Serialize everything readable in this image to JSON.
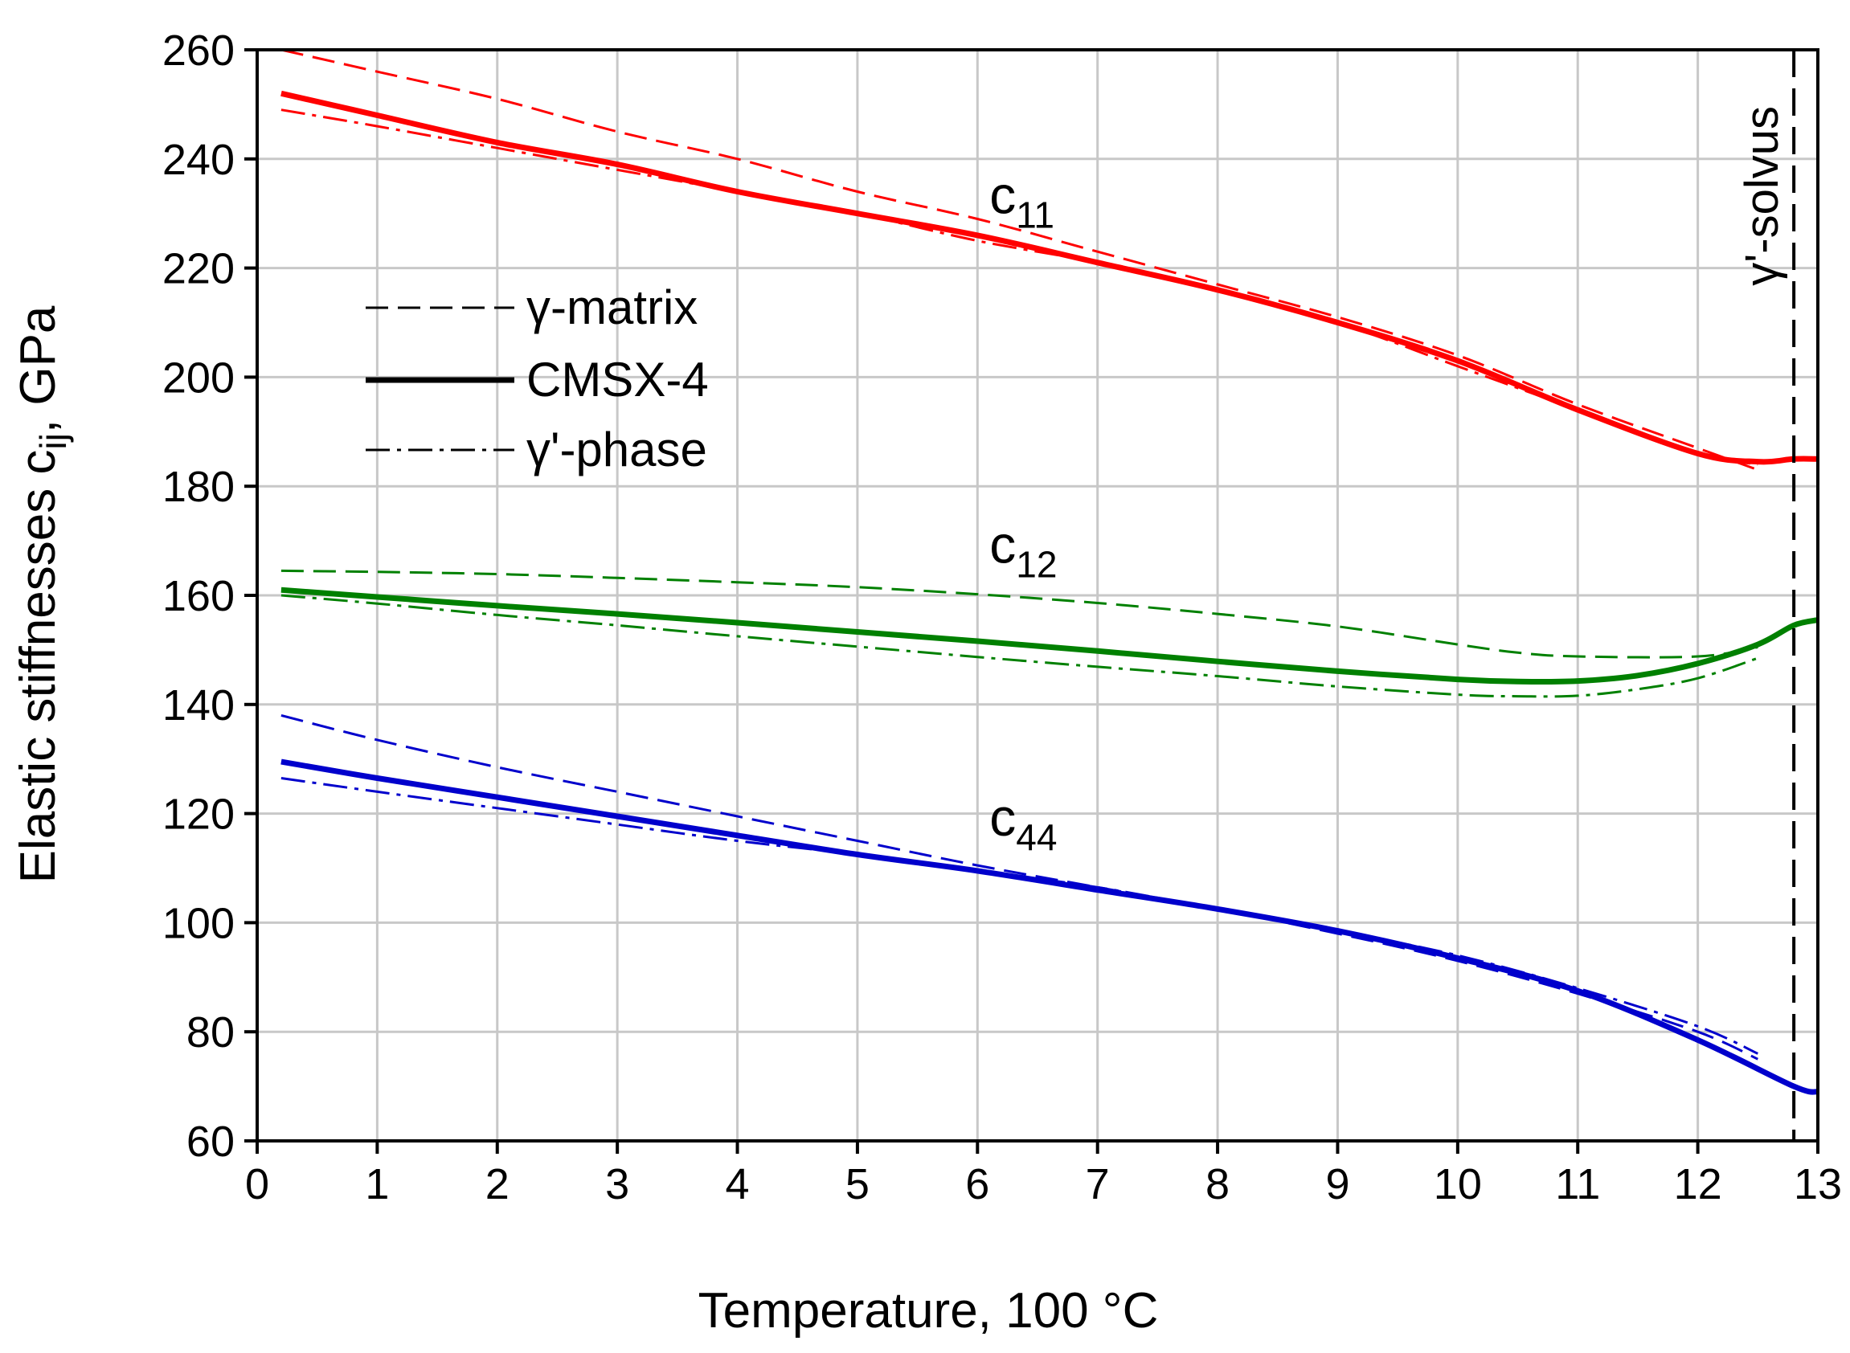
{
  "chart_data": {
    "type": "line",
    "xlabel": "Temperature, 100 °C",
    "ylabel_main": "Elastic stiffnesses c",
    "ylabel_sub": "ij",
    "ylabel_tail": ", GPa",
    "xlim": [
      0,
      13
    ],
    "ylim": [
      60,
      260
    ],
    "x_ticks": [
      0,
      1,
      2,
      3,
      4,
      5,
      6,
      7,
      8,
      9,
      10,
      11,
      12,
      13
    ],
    "y_ticks": [
      60,
      80,
      100,
      120,
      140,
      160,
      180,
      200,
      220,
      240,
      260
    ],
    "grid": true,
    "legend": {
      "position": "upper-left",
      "entries": [
        {
          "label": "γ-matrix",
          "style": "dashed"
        },
        {
          "label": "CMSX-4",
          "style": "solid"
        },
        {
          "label": "γ'-phase",
          "style": "dash-dot"
        }
      ]
    },
    "vline": {
      "x": 12.8,
      "label": "γ'-solvus",
      "style": "dashed",
      "color": "#000000"
    },
    "curve_labels": [
      {
        "main": "c",
        "sub": "11",
        "x": 6.1,
        "y": 230
      },
      {
        "main": "c",
        "sub": "12",
        "x": 6.1,
        "y": 166
      },
      {
        "main": "c",
        "sub": "44",
        "x": 6.1,
        "y": 116
      }
    ],
    "series": [
      {
        "name": "c11 γ-matrix",
        "group": "c11",
        "phase": "γ-matrix",
        "style": "dashed",
        "color": "#ff0000",
        "x": [
          0.2,
          1,
          2,
          3,
          4,
          5,
          6,
          7,
          8,
          9,
          10,
          11,
          12,
          12.5
        ],
        "y": [
          260,
          256,
          251,
          245,
          240,
          234,
          229,
          223,
          217,
          211,
          204,
          195,
          187,
          183
        ]
      },
      {
        "name": "c11 CMSX-4",
        "group": "c11",
        "phase": "CMSX-4",
        "style": "solid",
        "color": "#ff0000",
        "x": [
          0.2,
          1,
          2,
          3,
          4,
          5,
          6,
          7,
          8,
          9,
          10,
          11,
          12,
          12.5,
          12.8,
          13
        ],
        "y": [
          252,
          248,
          243,
          239,
          234,
          230,
          226,
          221,
          216,
          210,
          203,
          194,
          186,
          184.5,
          185,
          185
        ]
      },
      {
        "name": "c11 γ'-phase",
        "group": "c11",
        "phase": "γ'-phase",
        "style": "dash-dot",
        "color": "#ff0000",
        "x": [
          0.2,
          1,
          2,
          3,
          4,
          5,
          6,
          7,
          8,
          9,
          10,
          11,
          12,
          12.5
        ],
        "y": [
          249,
          246,
          242,
          238,
          234,
          230,
          225,
          221,
          216,
          210,
          202,
          194,
          186,
          184
        ]
      },
      {
        "name": "c12 γ-matrix",
        "group": "c12",
        "phase": "γ-matrix",
        "style": "dashed",
        "color": "#008000",
        "x": [
          0.2,
          1,
          2,
          3,
          4,
          5,
          6,
          7,
          8,
          9,
          10,
          10.5,
          11,
          12,
          12.5
        ],
        "y": [
          164.5,
          164.3,
          163.9,
          163.2,
          162.4,
          161.5,
          160.2,
          158.6,
          156.6,
          154.3,
          151,
          149.5,
          148.8,
          148.8,
          150.5
        ]
      },
      {
        "name": "c12 CMSX-4",
        "group": "c12",
        "phase": "CMSX-4",
        "style": "solid",
        "color": "#008000",
        "x": [
          0.2,
          1,
          2,
          3,
          4,
          5,
          6,
          7,
          8,
          9,
          10,
          10.5,
          11,
          11.5,
          12,
          12.5,
          12.8,
          13
        ],
        "y": [
          161,
          159.7,
          158.1,
          156.6,
          155,
          153.3,
          151.6,
          149.8,
          147.9,
          146.1,
          144.6,
          144.2,
          144.3,
          145.3,
          147.5,
          151,
          154.5,
          155.5
        ]
      },
      {
        "name": "c12 γ'-phase",
        "group": "c12",
        "phase": "γ'-phase",
        "style": "dash-dot",
        "color": "#008000",
        "x": [
          0.2,
          1,
          2,
          3,
          4,
          5,
          6,
          7,
          8,
          9,
          10,
          10.5,
          11,
          11.5,
          12,
          12.5
        ],
        "y": [
          160,
          158.5,
          156.4,
          154.5,
          152.5,
          150.6,
          148.7,
          146.9,
          145.2,
          143.3,
          141.8,
          141.5,
          141.6,
          142.8,
          144.8,
          148.5
        ]
      },
      {
        "name": "c44 γ-matrix",
        "group": "c44",
        "phase": "γ-matrix",
        "style": "dashed",
        "color": "#0000cc",
        "x": [
          0.2,
          1,
          2,
          3,
          4,
          5,
          6,
          7,
          8,
          9,
          10,
          11,
          12,
          12.5
        ],
        "y": [
          138,
          133.5,
          128.5,
          124,
          119.5,
          115,
          110.5,
          106.5,
          102.5,
          98,
          93,
          87,
          80,
          75
        ]
      },
      {
        "name": "c44 CMSX-4",
        "group": "c44",
        "phase": "CMSX-4",
        "style": "solid",
        "color": "#0000cc",
        "x": [
          0.2,
          1,
          2,
          3,
          4,
          5,
          6,
          7,
          8,
          9,
          10,
          11,
          12,
          12.8,
          13
        ],
        "y": [
          129.5,
          126.5,
          123,
          119.5,
          116,
          112.5,
          109.5,
          106,
          102.5,
          98.5,
          93.5,
          87.5,
          78.5,
          70,
          69
        ]
      },
      {
        "name": "c44 γ'-phase",
        "group": "c44",
        "phase": "γ'-phase",
        "style": "dash-dot",
        "color": "#0000cc",
        "x": [
          0.2,
          1,
          2,
          3,
          4,
          5,
          6,
          7,
          8,
          9,
          10,
          11,
          12,
          12.5
        ],
        "y": [
          126.5,
          124,
          121,
          118,
          115,
          112.5,
          109.5,
          106.5,
          102.5,
          98.5,
          94,
          88,
          81,
          76
        ]
      }
    ]
  }
}
